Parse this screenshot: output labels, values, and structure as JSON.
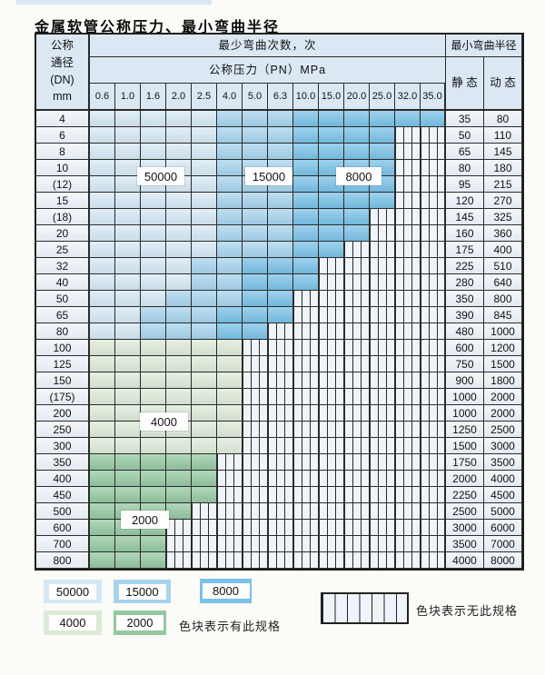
{
  "title": "金属软管公称压力、最小弯曲半径",
  "colors": {
    "c50000": "#d5e8f4",
    "c15000": "#a6d3ed",
    "c8000": "#79c1e7",
    "c4000": "#dcead8",
    "c2000": "#94c8a1",
    "header_bg": "#dbe8f3",
    "side_bg": "#eaf1f9",
    "stripe_bg": "#eef4fa",
    "grid_line": "#2b2b2b",
    "border": "#1f1f1f",
    "page_bg": "#fbfbf8"
  },
  "table": {
    "header": {
      "dn_label_lines": [
        "公称",
        "通径",
        "(DN)",
        "mm"
      ],
      "cycles_label": "最少弯曲次数，次",
      "pressure_label": "公称压力（PN）MPa",
      "pressure_columns": [
        "0.6",
        "1.0",
        "1.6",
        "2.0",
        "2.5",
        "4.0",
        "5.0",
        "6.3",
        "10.0",
        "15.0",
        "20.0",
        "25.0",
        "32.0",
        "35.0"
      ],
      "radius_label": "最小弯曲半径",
      "static_label": "静 态",
      "dynamic_label": "动 态"
    },
    "zone_codes": {
      "A": "50000",
      "B": "15000",
      "C": "8000",
      "G": "4000",
      "H": "2000",
      "N": "no-spec"
    },
    "rows": [
      {
        "dn": "4",
        "cells": "AAAAABBBCCCCCC",
        "static": "35",
        "dynamic": "80"
      },
      {
        "dn": "6",
        "cells": "AAAAABBBCCCCNN",
        "static": "50",
        "dynamic": "110"
      },
      {
        "dn": "8",
        "cells": "AAAAABBBCCCCNN",
        "static": "65",
        "dynamic": "145"
      },
      {
        "dn": "10",
        "cells": "AAAAABBBCCCCNN",
        "static": "80",
        "dynamic": "180"
      },
      {
        "dn": "(12)",
        "cells": "AAAAABBBCCCCNN",
        "static": "95",
        "dynamic": "215"
      },
      {
        "dn": "15",
        "cells": "AAAAABBBCCCCNN",
        "static": "120",
        "dynamic": "270"
      },
      {
        "dn": "(18)",
        "cells": "AAAAABBBCCCNNN",
        "static": "145",
        "dynamic": "325"
      },
      {
        "dn": "20",
        "cells": "AAAAABBBCCCNNN",
        "static": "160",
        "dynamic": "360"
      },
      {
        "dn": "25",
        "cells": "AAAAABBBCCNNNN",
        "static": "175",
        "dynamic": "400"
      },
      {
        "dn": "32",
        "cells": "AAAABBCCCNNNNN",
        "static": "225",
        "dynamic": "510"
      },
      {
        "dn": "40",
        "cells": "AAAABBCCCNNNNN",
        "static": "280",
        "dynamic": "640"
      },
      {
        "dn": "50",
        "cells": "AAABBBCCNNNNNN",
        "static": "350",
        "dynamic": "800"
      },
      {
        "dn": "65",
        "cells": "AABBBCCCNNNNNN",
        "static": "390",
        "dynamic": "845"
      },
      {
        "dn": "80",
        "cells": "AABBBCCNNNNNNN",
        "static": "480",
        "dynamic": "1000"
      },
      {
        "dn": "100",
        "cells": "GGGGGGNNNNNNNN",
        "static": "600",
        "dynamic": "1200"
      },
      {
        "dn": "125",
        "cells": "GGGGGGNNNNNNNN",
        "static": "750",
        "dynamic": "1500"
      },
      {
        "dn": "150",
        "cells": "GGGGGGNNNNNNNN",
        "static": "900",
        "dynamic": "1800"
      },
      {
        "dn": "(175)",
        "cells": "GGGGGGNNNNNNNN",
        "static": "1000",
        "dynamic": "2000"
      },
      {
        "dn": "200",
        "cells": "GGGGGGNNNNNNNN",
        "static": "1000",
        "dynamic": "2000"
      },
      {
        "dn": "250",
        "cells": "GGGGGGNNNNNNNN",
        "static": "1250",
        "dynamic": "2500"
      },
      {
        "dn": "300",
        "cells": "GGGGGGNNNNNNNN",
        "static": "1500",
        "dynamic": "3000"
      },
      {
        "dn": "350",
        "cells": "HHHHHNNNNNNNNN",
        "static": "1750",
        "dynamic": "3500"
      },
      {
        "dn": "400",
        "cells": "HHHHHNNNNNNNNN",
        "static": "2000",
        "dynamic": "4000"
      },
      {
        "dn": "450",
        "cells": "HHHHHNNNNNNNNN",
        "static": "2250",
        "dynamic": "4500"
      },
      {
        "dn": "500",
        "cells": "HHHHNNNNNNNNNN",
        "static": "2500",
        "dynamic": "5000"
      },
      {
        "dn": "600",
        "cells": "HHHNNNNNNNNNNN",
        "static": "3000",
        "dynamic": "6000"
      },
      {
        "dn": "700",
        "cells": "HHHNNNNNNNNNNN",
        "static": "3500",
        "dynamic": "7000"
      },
      {
        "dn": "800",
        "cells": "HHHNNNNNNNNNNN",
        "static": "4000",
        "dynamic": "8000"
      }
    ]
  },
  "overlays": {
    "cycles_50000": "50000",
    "cycles_15000": "15000",
    "cycles_8000": "8000",
    "cycles_4000": "4000",
    "cycles_2000": "2000"
  },
  "legend": {
    "blocks": [
      {
        "value": "50000",
        "color": "#d5e8f4"
      },
      {
        "value": "15000",
        "color": "#a6d3ed"
      },
      {
        "value": "8000",
        "color": "#79c1e7"
      },
      {
        "value": "4000",
        "color": "#dcead8"
      },
      {
        "value": "2000",
        "color": "#94c8a1"
      }
    ],
    "has_spec_label": "色块表示有此规格",
    "no_spec_label": "色块表示无此规格"
  }
}
